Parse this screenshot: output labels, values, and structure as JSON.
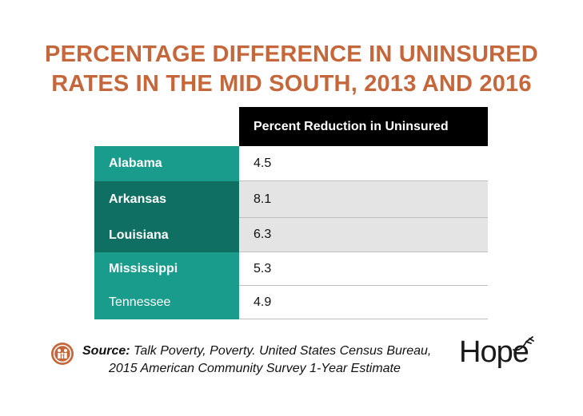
{
  "title": {
    "line1": "PERCENTAGE DIFFERENCE IN UNINSURED",
    "line2": "RATES IN THE MID SOUTH, 2013 AND 2016"
  },
  "chart_data": {
    "type": "table",
    "column_header": "Percent Reduction in Uninsured",
    "categories": [
      "Alabama",
      "Arkansas",
      "Louisiana",
      "Mississippi",
      "Tennessee"
    ],
    "values": [
      "4.5",
      "8.1",
      "6.3",
      "5.3",
      "4.9"
    ],
    "colors": {
      "teal": "#1a9c8c",
      "dark_teal": "#0e6f62",
      "header_bg": "#000000",
      "shaded_row": "#e4e4e4",
      "title": "#c5673a"
    }
  },
  "source": {
    "label": "Source:",
    "line1": "Talk Poverty, Poverty. United States Census Bureau,",
    "line2": "2015 American Community Survey 1-Year Estimate"
  },
  "brand": {
    "name": "Hope"
  }
}
